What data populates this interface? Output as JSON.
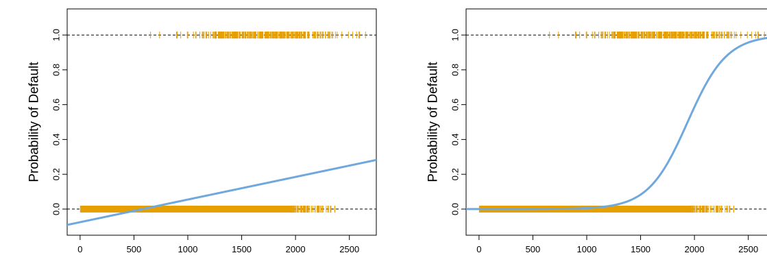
{
  "chart_data": [
    {
      "type": "scatter",
      "model": "linear",
      "title": "",
      "xlabel": "",
      "ylabel": "Probability of Default",
      "xlim": [
        -120,
        2750
      ],
      "ylim": [
        -0.15,
        1.15
      ],
      "xticks": [
        "0",
        "500",
        "1000",
        "1500",
        "2000",
        "2500"
      ],
      "yticks": [
        "0.0",
        "0.2",
        "0.4",
        "0.6",
        "0.8",
        "1.0"
      ],
      "reference_lines": [
        0,
        1
      ],
      "observations": {
        "default_yes": {
          "y": 1,
          "min_x": 650,
          "max_x": 2654
        },
        "default_no": {
          "y": 0,
          "min_x": 0,
          "max_x": 2391
        }
      },
      "fit": {
        "intercept": -0.0752,
        "slope": 0.00013
      },
      "colors": {
        "points": "#E69F00",
        "fit": "#6FA8DC"
      }
    },
    {
      "type": "scatter",
      "model": "logistic",
      "title": "",
      "xlabel": "",
      "ylabel": "Probability of Default",
      "xlim": [
        -120,
        2750
      ],
      "ylim": [
        -0.15,
        1.15
      ],
      "xticks": [
        "0",
        "500",
        "1000",
        "1500",
        "2000",
        "2500"
      ],
      "yticks": [
        "0.0",
        "0.2",
        "0.4",
        "0.6",
        "0.8",
        "1.0"
      ],
      "reference_lines": [
        0,
        1
      ],
      "observations": {
        "default_yes": {
          "y": 1,
          "min_x": 650,
          "max_x": 2654
        },
        "default_no": {
          "y": 0,
          "min_x": 0,
          "max_x": 2391
        }
      },
      "fit": {
        "intercept": -10.6513,
        "slope": 0.0055
      },
      "colors": {
        "points": "#E69F00",
        "fit": "#6FA8DC"
      }
    }
  ]
}
